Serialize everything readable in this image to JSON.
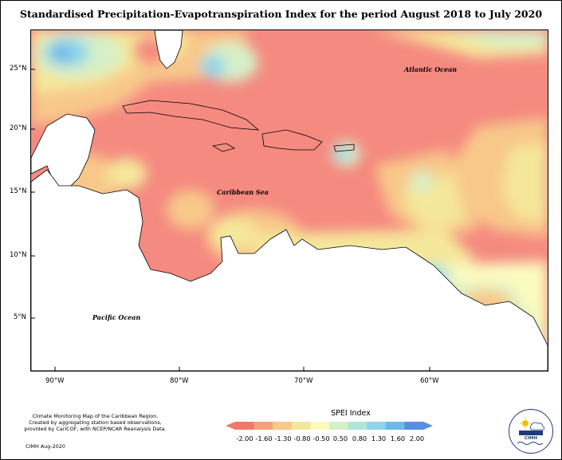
{
  "title": "Standardised Precipitation-Evapotranspiration Index for the period August 2018 to July 2020",
  "labels": {
    "atlantic": "Atlantic Ocean",
    "caribbean": "Caribbean Sea",
    "pacific": "Pacific Ocean"
  },
  "axes": {
    "lat_ticks": [
      "25°N",
      "20°N",
      "15°N",
      "10°N",
      "5°N"
    ],
    "lon_ticks": [
      "90°W",
      "80°W",
      "70°W",
      "60°W"
    ]
  },
  "credits": {
    "line1": "Climate Monitoring Map of the Caribbean Region.",
    "line2": "Created by aggregating station based observations,",
    "line3": "provided by CariCOF, with NCEP/NCAR Reanalysis Data.",
    "line4": "CIMH Aug-2020"
  },
  "legend": {
    "title": "SPEI Index",
    "values": [
      "-2.00",
      "-1.60",
      "-1.30",
      "-0.80",
      "-0.50",
      "0.50",
      "0.80",
      "1.30",
      "1.60",
      "2.00"
    ],
    "colors": [
      "#f07a6a",
      "#f5a27a",
      "#f8c88a",
      "#f5e79a",
      "#fbfbc0",
      "#d6f0c8",
      "#b0e6d8",
      "#8ed4ea",
      "#6fb8e8",
      "#5a8ee0"
    ]
  },
  "logo": {
    "text": "CIMH"
  }
}
